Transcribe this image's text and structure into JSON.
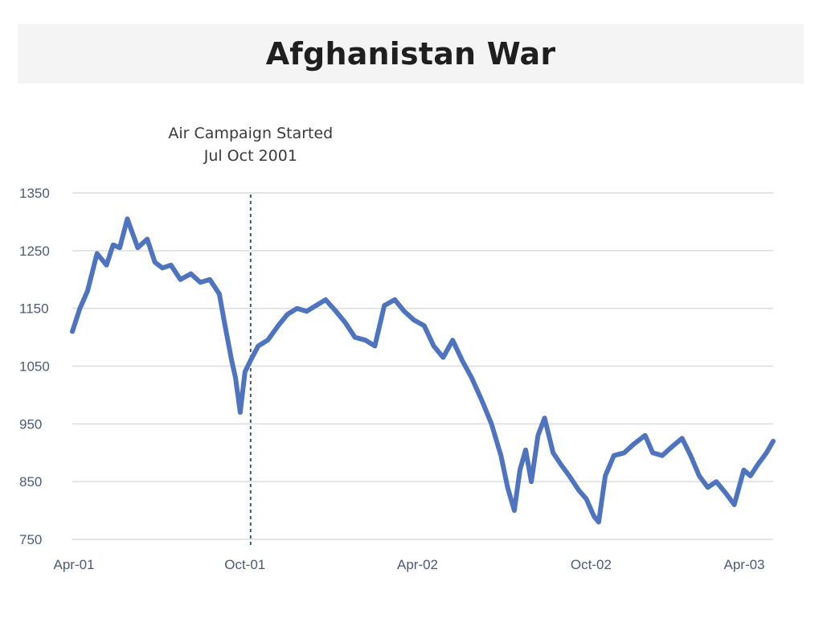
{
  "chart_data": {
    "type": "line",
    "title": "Afghanistan War",
    "xlabel": "",
    "ylabel": "",
    "x_ticks": [
      "Apr-01",
      "Oct-01",
      "Apr-02",
      "Oct-02",
      "Apr-03"
    ],
    "y_ticks": [
      750,
      850,
      950,
      1050,
      1150,
      1250,
      1350
    ],
    "ylim": [
      750,
      1350
    ],
    "xlim": [
      "2001-04-02",
      "2003-04-11"
    ],
    "grid": "horizontal",
    "legend": "none",
    "colors": {
      "line": "#4e73bf",
      "grid": "#dcdcdc",
      "marker": "#3d5a80"
    },
    "annotation": {
      "x": "2001-10-07",
      "line1": "Air Campaign Started",
      "line2": "Jul Oct 2001"
    },
    "series": [
      {
        "x": [
          "2001-04-02",
          "2001-04-10",
          "2001-04-18",
          "2001-04-28",
          "2001-05-08",
          "2001-05-15",
          "2001-05-22",
          "2001-05-30",
          "2001-06-10",
          "2001-06-20",
          "2001-06-28",
          "2001-07-06",
          "2001-07-15",
          "2001-07-25",
          "2001-08-05",
          "2001-08-15",
          "2001-08-25",
          "2001-09-04",
          "2001-09-10",
          "2001-09-17",
          "2001-09-21",
          "2001-09-26",
          "2001-10-01",
          "2001-10-07",
          "2001-10-15",
          "2001-10-25",
          "2001-11-05",
          "2001-11-15",
          "2001-11-25",
          "2001-12-05",
          "2001-12-15",
          "2001-12-25",
          "2002-01-05",
          "2002-01-15",
          "2002-01-25",
          "2002-02-05",
          "2002-02-15",
          "2002-02-25",
          "2002-03-08",
          "2002-03-18",
          "2002-03-28",
          "2002-04-08",
          "2002-04-18",
          "2002-04-28",
          "2002-05-08",
          "2002-05-18",
          "2002-05-28",
          "2002-06-08",
          "2002-06-18",
          "2002-06-28",
          "2002-07-05",
          "2002-07-12",
          "2002-07-18",
          "2002-07-24",
          "2002-07-30",
          "2002-08-06",
          "2002-08-13",
          "2002-08-22",
          "2002-08-30",
          "2002-09-08",
          "2002-09-18",
          "2002-09-26",
          "2002-10-04",
          "2002-10-09",
          "2002-10-16",
          "2002-10-25",
          "2002-11-05",
          "2002-11-15",
          "2002-11-27",
          "2002-12-05",
          "2002-12-15",
          "2002-12-25",
          "2003-01-05",
          "2003-01-14",
          "2003-01-23",
          "2003-02-01",
          "2003-02-10",
          "2003-02-20",
          "2003-03-01",
          "2003-03-11",
          "2003-03-18",
          "2003-03-26",
          "2003-04-04",
          "2003-04-11"
        ],
        "values": [
          1110,
          1150,
          1180,
          1245,
          1225,
          1260,
          1255,
          1305,
          1255,
          1270,
          1230,
          1220,
          1225,
          1200,
          1210,
          1195,
          1200,
          1175,
          1120,
          1060,
          1030,
          970,
          1040,
          1060,
          1085,
          1095,
          1120,
          1140,
          1150,
          1145,
          1155,
          1165,
          1145,
          1125,
          1100,
          1095,
          1085,
          1155,
          1165,
          1145,
          1130,
          1120,
          1085,
          1065,
          1095,
          1060,
          1030,
          990,
          950,
          895,
          840,
          800,
          870,
          905,
          850,
          930,
          960,
          900,
          880,
          860,
          835,
          820,
          790,
          780,
          860,
          895,
          900,
          915,
          930,
          900,
          895,
          910,
          925,
          895,
          860,
          840,
          850,
          830,
          810,
          870,
          860,
          880,
          900,
          920
        ]
      }
    ]
  }
}
